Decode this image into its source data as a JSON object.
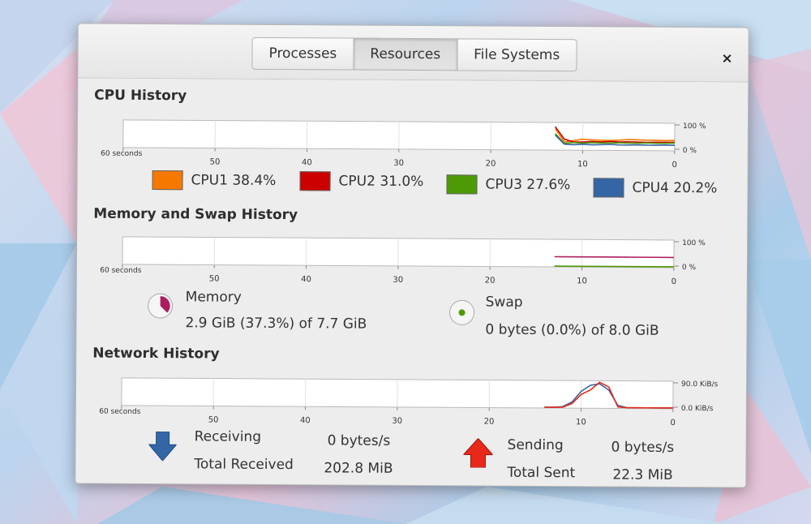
{
  "tabs": [
    {
      "label": "Processes"
    },
    {
      "label": "Resources"
    },
    {
      "label": "File Systems"
    }
  ],
  "active_tab": "Resources",
  "close_glyph": "×",
  "cpu": {
    "title": "CPU History",
    "x_start": "60 seconds",
    "x_ticks": [
      "50",
      "40",
      "30",
      "20",
      "10",
      "0"
    ],
    "y_top": "100 %",
    "y_bottom": "0 %",
    "legend": [
      {
        "name": "CPU1",
        "value": "38.4%",
        "color": "#f57900"
      },
      {
        "name": "CPU2",
        "value": "31.0%",
        "color": "#cc0000"
      },
      {
        "name": "CPU3",
        "value": "27.6%",
        "color": "#4e9a06"
      },
      {
        "name": "CPU4",
        "value": "20.2%",
        "color": "#3465a4"
      }
    ]
  },
  "memory": {
    "title": "Memory and Swap History",
    "x_start": "60 seconds",
    "x_ticks": [
      "50",
      "40",
      "30",
      "20",
      "10",
      "0"
    ],
    "y_top": "100 %",
    "y_bottom": "0 %",
    "memory_label": "Memory",
    "memory_value": "2.9 GiB (37.3%) of 7.7 GiB",
    "memory_percent": 37.3,
    "memory_color": "#ad1d5e",
    "swap_label": "Swap",
    "swap_value": "0 bytes (0.0%) of 8.0 GiB",
    "swap_percent": 0.0,
    "swap_color": "#4e9a06"
  },
  "network": {
    "title": "Network History",
    "x_start": "60 seconds",
    "x_ticks": [
      "50",
      "40",
      "30",
      "20",
      "10",
      "0"
    ],
    "y_top": "90.0 KiB/s",
    "y_bottom": "0.0 KiB/s",
    "receiving_label": "Receiving",
    "receiving_value": "0 bytes/s",
    "total_received_label": "Total Received",
    "total_received_value": "202.8 MiB",
    "sending_label": "Sending",
    "sending_value": "0 bytes/s",
    "total_sent_label": "Total Sent",
    "total_sent_value": "22.3 MiB",
    "receiving_color": "#3465a4",
    "sending_color": "#e8281a"
  },
  "chart_data": [
    {
      "type": "line",
      "title": "CPU History",
      "x": [
        13,
        12,
        11,
        10,
        9,
        8,
        7,
        6,
        5,
        4,
        3,
        2,
        1,
        0
      ],
      "xlim": [
        60,
        0
      ],
      "ylim": [
        0,
        100
      ],
      "series": [
        {
          "name": "CPU1",
          "values": [
            78,
            30,
            35,
            40,
            38,
            37,
            36,
            38,
            40,
            39,
            38,
            38,
            37,
            38
          ]
        },
        {
          "name": "CPU2",
          "values": [
            85,
            40,
            30,
            30,
            32,
            31,
            33,
            31,
            32,
            31,
            30,
            31,
            31,
            31
          ]
        },
        {
          "name": "CPU3",
          "values": [
            60,
            25,
            28,
            26,
            28,
            27,
            27,
            28,
            27,
            27,
            28,
            27,
            27,
            28
          ]
        },
        {
          "name": "CPU4",
          "values": [
            55,
            22,
            20,
            22,
            20,
            21,
            22,
            20,
            20,
            21,
            20,
            20,
            21,
            20
          ]
        }
      ]
    },
    {
      "type": "line",
      "title": "Memory and Swap History",
      "x": [
        13,
        12,
        10,
        8,
        6,
        4,
        2,
        0
      ],
      "xlim": [
        60,
        0
      ],
      "ylim": [
        0,
        100
      ],
      "series": [
        {
          "name": "Memory",
          "values": [
            37,
            37,
            37,
            37,
            37,
            37,
            37,
            37
          ]
        },
        {
          "name": "Swap",
          "values": [
            0,
            0,
            0,
            0,
            0,
            0,
            0,
            0
          ]
        }
      ]
    },
    {
      "type": "line",
      "title": "Network History",
      "x": [
        14,
        13,
        12,
        11,
        10,
        9,
        8,
        7,
        6,
        5,
        4,
        3,
        2,
        1,
        0
      ],
      "xlim": [
        60,
        0
      ],
      "ylim": [
        0,
        90
      ],
      "series": [
        {
          "name": "Receiving",
          "values": [
            0,
            0,
            5,
            20,
            55,
            75,
            80,
            60,
            10,
            2,
            0,
            0,
            0,
            0,
            0
          ]
        },
        {
          "name": "Sending",
          "values": [
            0,
            0,
            3,
            15,
            45,
            60,
            85,
            70,
            5,
            1,
            0,
            0,
            0,
            0,
            0
          ]
        }
      ]
    }
  ]
}
